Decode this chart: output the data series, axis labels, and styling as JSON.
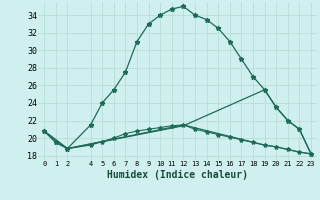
{
  "xlabel": "Humidex (Indice chaleur)",
  "bg_color": "#cff0ee",
  "grid_color": "#b8ddd8",
  "line_color": "#1e6b5a",
  "xlim": [
    -0.5,
    23.5
  ],
  "ylim": [
    17.5,
    35.5
  ],
  "xtick_vals": [
    0,
    1,
    2,
    4,
    5,
    6,
    7,
    8,
    9,
    10,
    11,
    12,
    13,
    14,
    15,
    16,
    17,
    18,
    19,
    20,
    21,
    22,
    23
  ],
  "xtick_labels": [
    "0",
    "1",
    "2",
    "4",
    "5",
    "6",
    "7",
    "8",
    "9",
    "10",
    "11",
    "12",
    "13",
    "14",
    "15",
    "16",
    "17",
    "18",
    "19",
    "20",
    "21",
    "22",
    "23"
  ],
  "ytick_vals": [
    18,
    20,
    22,
    24,
    26,
    28,
    30,
    32,
    34
  ],
  "ytick_labels": [
    "18",
    "20",
    "22",
    "24",
    "26",
    "28",
    "30",
    "32",
    "34"
  ],
  "series1_x": [
    0,
    1,
    2,
    4,
    5,
    6,
    7,
    8,
    9,
    10,
    11,
    12,
    13,
    14,
    15,
    16,
    17,
    18,
    19,
    20,
    21,
    22,
    23
  ],
  "series1_y": [
    20.8,
    19.5,
    18.8,
    21.5,
    24.0,
    25.5,
    27.5,
    31.0,
    33.0,
    34.0,
    34.7,
    35.0,
    34.0,
    33.5,
    32.5,
    31.0,
    29.0,
    27.0,
    25.5,
    23.5,
    22.0,
    21.0,
    18.2
  ],
  "series2_x": [
    0,
    1,
    2,
    4,
    5,
    6,
    7,
    8,
    9,
    10,
    11,
    12,
    13,
    14,
    15,
    16,
    17,
    18,
    19,
    20,
    21,
    22,
    23
  ],
  "series2_y": [
    20.8,
    19.5,
    18.8,
    19.2,
    19.6,
    20.0,
    20.5,
    20.8,
    21.0,
    21.2,
    21.4,
    21.5,
    21.0,
    20.7,
    20.4,
    20.1,
    19.8,
    19.5,
    19.2,
    19.0,
    18.7,
    18.4,
    18.2
  ],
  "series3_x": [
    0,
    2,
    12,
    19,
    20,
    21,
    22,
    23
  ],
  "series3_y": [
    20.8,
    18.8,
    21.4,
    25.5,
    23.5,
    22.0,
    21.0,
    18.2
  ],
  "series4_x": [
    0,
    2,
    12,
    19,
    20,
    21,
    22,
    23
  ],
  "series4_y": [
    20.8,
    18.8,
    21.5,
    19.2,
    19.0,
    18.7,
    18.4,
    18.2
  ]
}
